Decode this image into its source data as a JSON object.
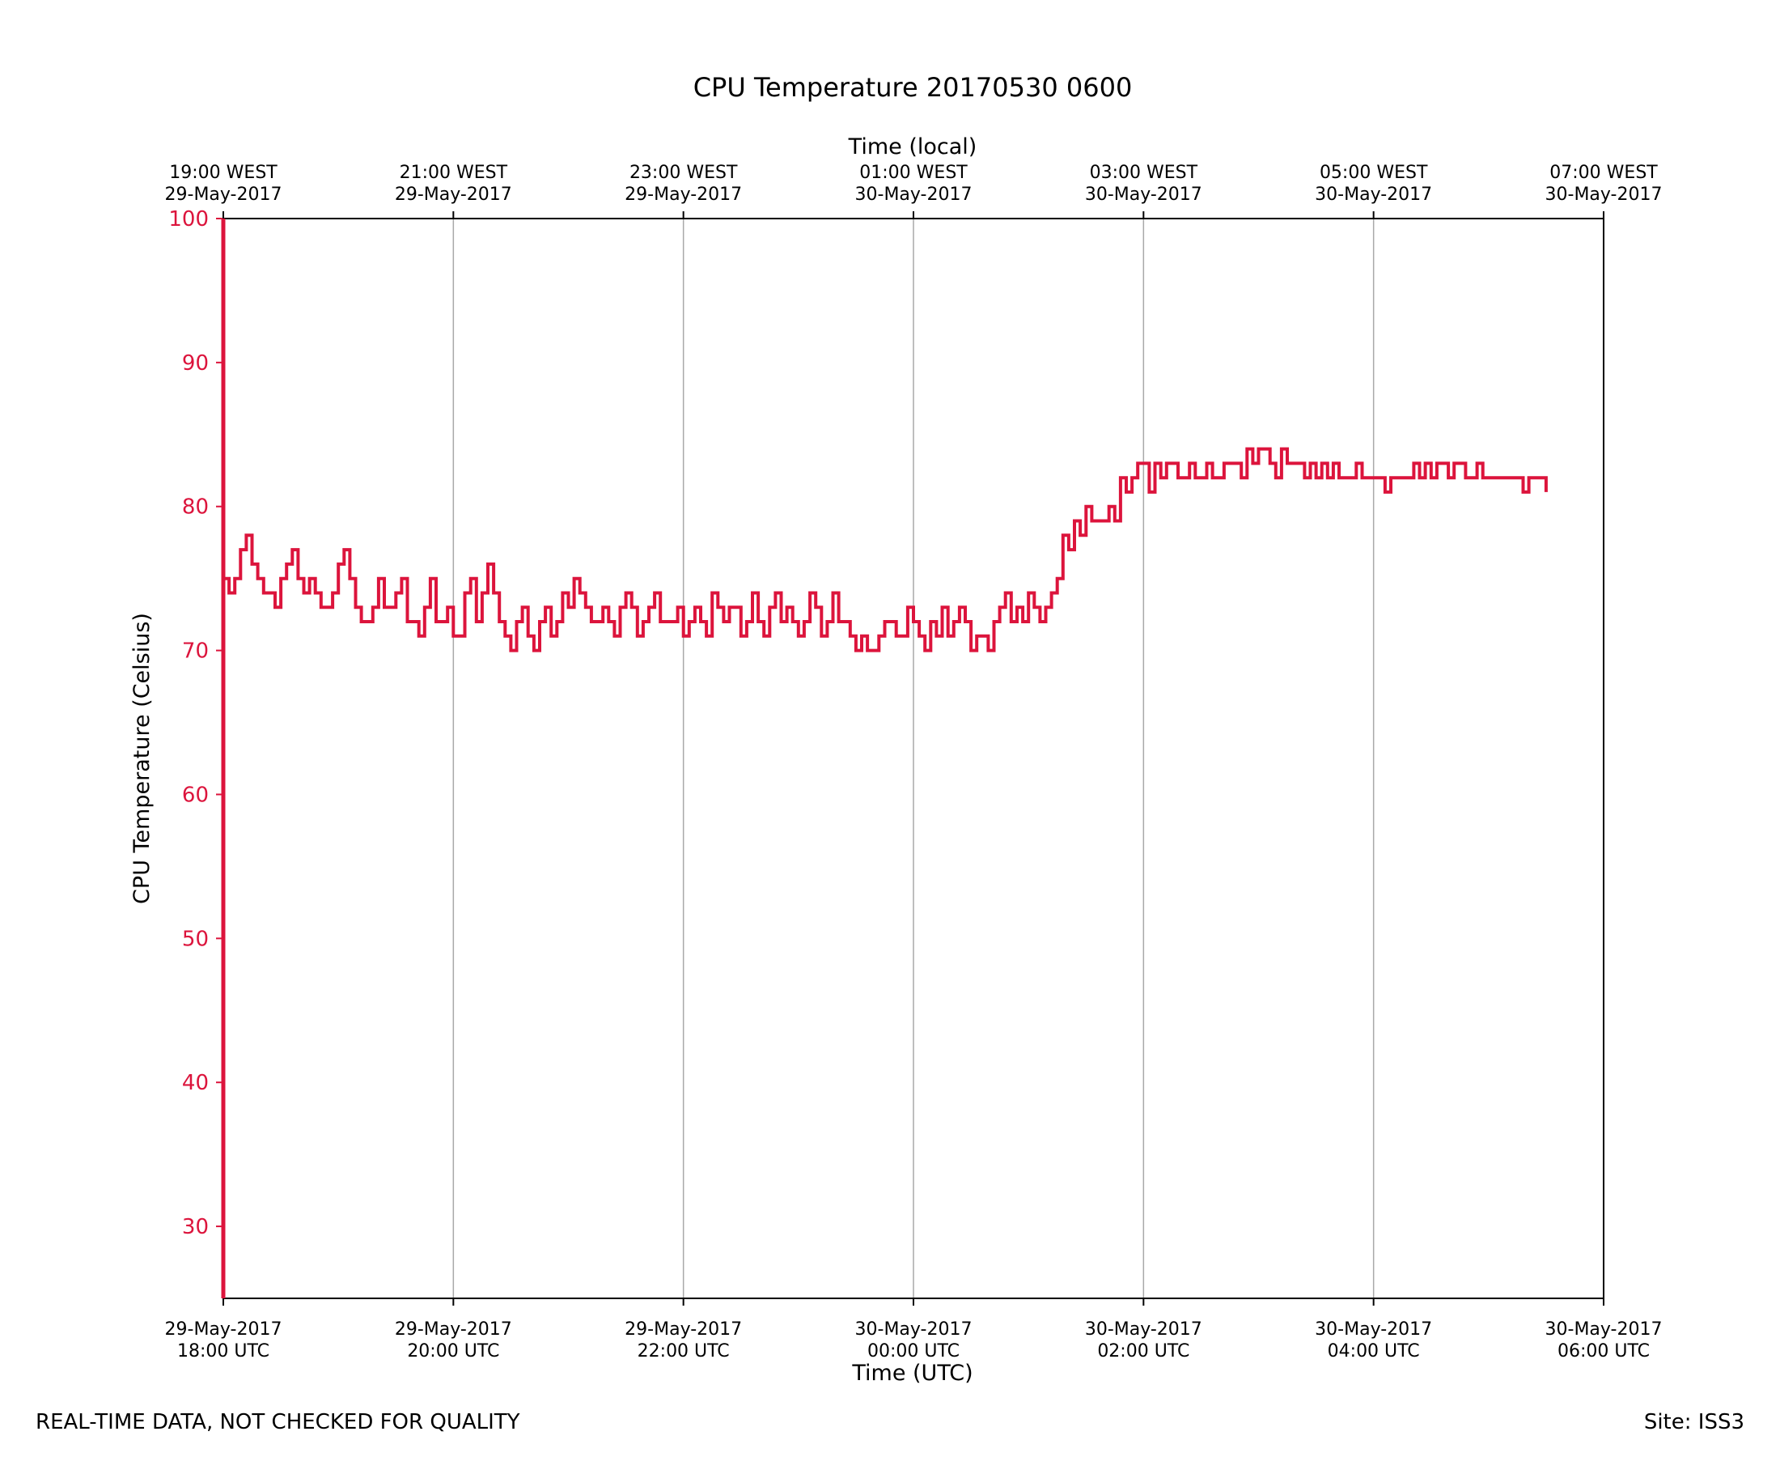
{
  "chart_data": {
    "type": "line",
    "title": "CPU Temperature 20170530 0600",
    "xlabel": "Time (UTC)",
    "x2label": "Time (local)",
    "ylabel": "CPU Temperature (Celsius)",
    "ylim": [
      25,
      100
    ],
    "yticks": [
      30,
      40,
      50,
      60,
      70,
      80,
      90,
      100
    ],
    "xlim_hours": [
      0,
      12
    ],
    "grid": "vertical",
    "bottom_ticks": [
      {
        "h": 0,
        "l1": "29-May-2017",
        "l2": "18:00 UTC"
      },
      {
        "h": 2,
        "l1": "29-May-2017",
        "l2": "20:00 UTC"
      },
      {
        "h": 4,
        "l1": "29-May-2017",
        "l2": "22:00 UTC"
      },
      {
        "h": 6,
        "l1": "30-May-2017",
        "l2": "00:00 UTC"
      },
      {
        "h": 8,
        "l1": "30-May-2017",
        "l2": "02:00 UTC"
      },
      {
        "h": 10,
        "l1": "30-May-2017",
        "l2": "04:00 UTC"
      },
      {
        "h": 12,
        "l1": "30-May-2017",
        "l2": "06:00 UTC"
      }
    ],
    "top_ticks": [
      {
        "h": 0,
        "l1": "19:00 WEST",
        "l2": "29-May-2017"
      },
      {
        "h": 2,
        "l1": "21:00 WEST",
        "l2": "29-May-2017"
      },
      {
        "h": 4,
        "l1": "23:00 WEST",
        "l2": "29-May-2017"
      },
      {
        "h": 6,
        "l1": "01:00 WEST",
        "l2": "30-May-2017"
      },
      {
        "h": 8,
        "l1": "03:00 WEST",
        "l2": "30-May-2017"
      },
      {
        "h": 10,
        "l1": "05:00 WEST",
        "l2": "30-May-2017"
      },
      {
        "h": 12,
        "l1": "07:00 WEST",
        "l2": "30-May-2017"
      }
    ],
    "series": [
      {
        "name": "CPU Temperature",
        "color": "#dc143c",
        "x_start_hours": 0,
        "x_step_hours": 0.05,
        "values": [
          75,
          74,
          75,
          77,
          78,
          76,
          75,
          74,
          74,
          73,
          75,
          76,
          77,
          75,
          74,
          75,
          74,
          73,
          73,
          74,
          76,
          77,
          75,
          73,
          72,
          72,
          73,
          75,
          73,
          73,
          74,
          75,
          72,
          72,
          71,
          73,
          75,
          72,
          72,
          73,
          71,
          71,
          74,
          75,
          72,
          74,
          76,
          74,
          72,
          71,
          70,
          72,
          73,
          71,
          70,
          72,
          73,
          71,
          72,
          74,
          73,
          75,
          74,
          73,
          72,
          72,
          73,
          72,
          71,
          73,
          74,
          73,
          71,
          72,
          73,
          74,
          72,
          72,
          72,
          73,
          71,
          72,
          73,
          72,
          71,
          74,
          73,
          72,
          73,
          73,
          71,
          72,
          74,
          72,
          71,
          73,
          74,
          72,
          73,
          72,
          71,
          72,
          74,
          73,
          71,
          72,
          74,
          72,
          72,
          71,
          70,
          71,
          70,
          70,
          71,
          72,
          72,
          71,
          71,
          73,
          72,
          71,
          70,
          72,
          71,
          73,
          71,
          72,
          73,
          72,
          70,
          71,
          71,
          70,
          72,
          73,
          74,
          72,
          73,
          72,
          74,
          73,
          72,
          73,
          74,
          75,
          78,
          77,
          79,
          78,
          80,
          79,
          79,
          79,
          80,
          79,
          82,
          81,
          82,
          83,
          83,
          81,
          83,
          82,
          83,
          83,
          82,
          82,
          83,
          82,
          82,
          83,
          82,
          82,
          83,
          83,
          83,
          82,
          84,
          83,
          84,
          84,
          83,
          82,
          84,
          83,
          83,
          83,
          82,
          83,
          82,
          83,
          82,
          83,
          82,
          82,
          82,
          83,
          82,
          82,
          82,
          82,
          81,
          82,
          82,
          82,
          82,
          83,
          82,
          83,
          82,
          83,
          83,
          82,
          83,
          83,
          82,
          82,
          83,
          82,
          82,
          82,
          82,
          82,
          82,
          82,
          81,
          82,
          82,
          82,
          81
        ]
      }
    ]
  },
  "footer": {
    "disclaimer": "REAL-TIME DATA, NOT CHECKED FOR QUALITY",
    "site": "Site: ISS3"
  },
  "colors": {
    "series": "#dc143c",
    "axis": "#000000",
    "grid": "#a9a9a9",
    "background": "#ffffff"
  }
}
